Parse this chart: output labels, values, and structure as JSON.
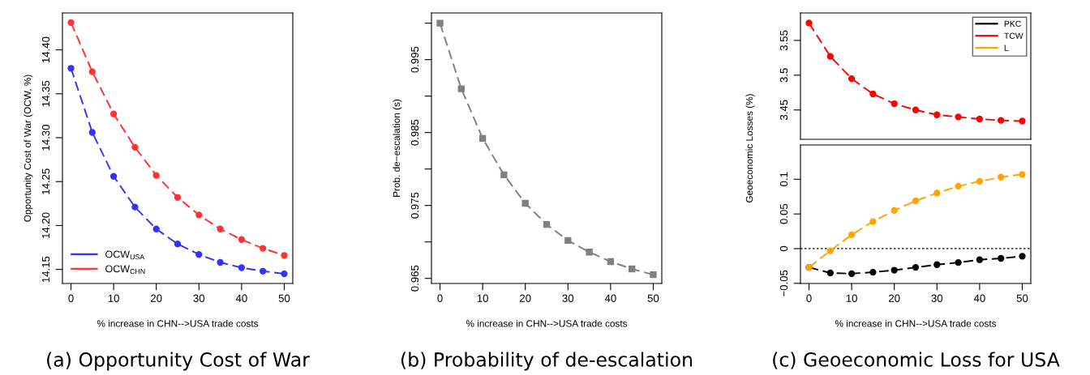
{
  "chart_data": [
    {
      "type": "line",
      "title": "(a) Opportunity Cost of War",
      "xlabel": "% increase in CHN-->USA trade costs",
      "ylabel": "Opportunity Cost of War (OCW, %)",
      "x": [
        0,
        5,
        10,
        15,
        20,
        25,
        30,
        35,
        40,
        45,
        50
      ],
      "xlim": [
        -2,
        52
      ],
      "xticks": [
        0,
        10,
        20,
        30,
        40,
        50
      ],
      "ylim": [
        14.134,
        14.442
      ],
      "yticks": [
        {
          "value": 14.15,
          "label": "14.15"
        },
        {
          "value": 14.2,
          "label": "14.20"
        },
        {
          "value": 14.25,
          "label": "14.25"
        },
        {
          "value": 14.3,
          "label": "14.30"
        },
        {
          "value": 14.35,
          "label": "14.35"
        },
        {
          "value": 14.4,
          "label": "14.40"
        }
      ],
      "marker": "circle",
      "line_style": "dashed",
      "legend": "bottom left",
      "grid": false,
      "series": [
        {
          "name": "OCW$_{USA}$",
          "color": "#3333ff",
          "values": [
            14.379,
            14.306,
            14.256,
            14.221,
            14.196,
            14.179,
            14.167,
            14.158,
            14.152,
            14.148,
            14.145
          ]
        },
        {
          "name": "OCW$_{CHN}$",
          "color": "#ff3333",
          "values": [
            14.431,
            14.375,
            14.327,
            14.289,
            14.257,
            14.232,
            14.212,
            14.196,
            14.184,
            14.174,
            14.166
          ]
        }
      ]
    },
    {
      "type": "line",
      "title": "(b) Probability of de-escalation",
      "xlabel": "% increase in CHN-->USA trade costs",
      "ylabel": "Prob. de−escalation (s)",
      "x": [
        0,
        5,
        10,
        15,
        20,
        25,
        30,
        35,
        40,
        45,
        50
      ],
      "xlim": [
        -2,
        52
      ],
      "xticks": [
        0,
        10,
        20,
        30,
        40,
        50
      ],
      "ylim": [
        0.9643,
        1.0014
      ],
      "yticks": [
        0.965,
        {
          "value": 0.97,
          "label": null
        },
        0.975,
        {
          "value": 0.98,
          "label": null
        },
        0.985,
        {
          "value": 0.99,
          "label": null
        },
        0.995,
        {
          "value": 1.0,
          "label": null
        }
      ],
      "marker": "square",
      "line_style": "dashed",
      "grid": false,
      "series": [
        {
          "color": "#808080",
          "values": [
            1.0,
            0.991,
            0.9842,
            0.9792,
            0.9753,
            0.9724,
            0.9702,
            0.9686,
            0.9673,
            0.9663,
            0.9655
          ]
        }
      ]
    },
    {
      "type": "line",
      "ylabel": "Geoeconomic Losses (%)",
      "x": [
        0,
        5,
        10,
        15,
        20,
        25,
        30,
        35,
        40,
        45,
        50
      ],
      "xlim": [
        -2,
        52
      ],
      "ylim": [
        3.4078,
        3.5895
      ],
      "yticks": [
        3.45,
        3.5,
        3.55
      ],
      "tick_labels": "y",
      "marker": "circle",
      "line_style": "dashed",
      "legend": "top right",
      "grid": false,
      "series": [
        {
          "name": "TCW",
          "color": "#ff0000",
          "values": [
            3.575,
            3.527,
            3.495,
            3.473,
            3.459,
            3.45,
            3.443,
            3.44,
            3.437,
            3.435,
            3.434
          ]
        }
      ]
    },
    {
      "type": "line",
      "title": "(c) Geoeconomic Loss for USA",
      "xlabel": "% increase in CHN-->USA trade costs",
      "x": [
        0,
        5,
        10,
        15,
        20,
        25,
        30,
        35,
        40,
        45,
        50
      ],
      "xlim": [
        -2,
        52
      ],
      "xticks": [
        0,
        10,
        20,
        30,
        40,
        50
      ],
      "ylim": [
        -0.0502,
        0.1494
      ],
      "yticks": [
        {
          "value": -0.05,
          "label": "−0.05"
        },
        0,
        0.05,
        0.1
      ],
      "marker": "circle",
      "line_style": "dashed",
      "legend": "top right",
      "grid": false,
      "ref_lines": [
        {
          "axis": "y",
          "value": 0,
          "color": "#000000",
          "line_style": "dotted"
        }
      ],
      "series": [
        {
          "name": "PKC",
          "color": "#000000",
          "values": [
            -0.027,
            -0.035,
            -0.036,
            -0.034,
            -0.031,
            -0.027,
            -0.023,
            -0.02,
            -0.016,
            -0.014,
            -0.011
          ]
        },
        {
          "name": "L",
          "color": "#ffa500",
          "values": [
            -0.027,
            -0.003,
            0.02,
            0.039,
            0.055,
            0.069,
            0.08,
            0.09,
            0.097,
            0.103,
            0.107
          ]
        }
      ]
    }
  ]
}
